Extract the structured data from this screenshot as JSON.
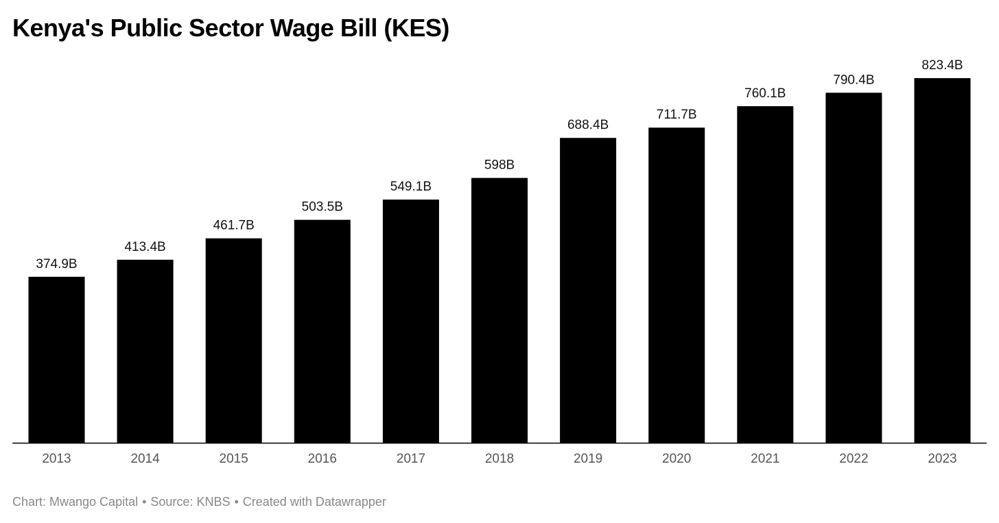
{
  "title": "Kenya's Public Sector Wage Bill (KES)",
  "footer": {
    "chart_credit": "Chart: Mwango Capital",
    "source": "Source: KNBS",
    "created_with": "Created with Datawrapper",
    "separator": "•"
  },
  "colors": {
    "bar": "#000000",
    "axis_line": "#000000",
    "tick_text": "#555555",
    "footer_text": "#888888"
  },
  "chart_data": {
    "type": "bar",
    "title": "Kenya's Public Sector Wage Bill (KES)",
    "xlabel": "",
    "ylabel": "",
    "ylim": [
      0,
      823.4
    ],
    "grid": false,
    "legend": "none",
    "categories": [
      "2013",
      "2014",
      "2015",
      "2016",
      "2017",
      "2018",
      "2019",
      "2020",
      "2021",
      "2022",
      "2023"
    ],
    "values": [
      374.9,
      413.4,
      461.7,
      503.5,
      549.1,
      598,
      688.4,
      711.7,
      760.1,
      790.4,
      823.4
    ],
    "data_labels": [
      "374.9B",
      "413.4B",
      "461.7B",
      "503.5B",
      "549.1B",
      "598B",
      "688.4B",
      "711.7B",
      "760.1B",
      "790.4B",
      "823.4B"
    ]
  }
}
